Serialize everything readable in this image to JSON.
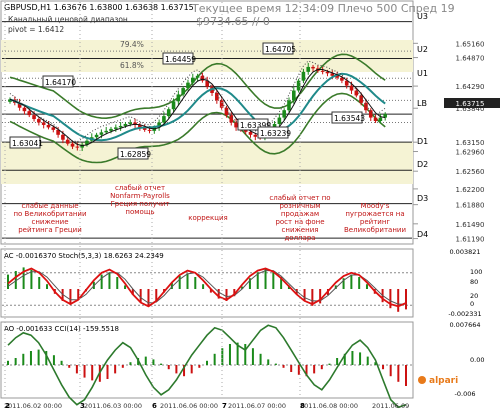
{
  "header": {
    "symbol_line": "GBPUSD,H1  1.63676 1.63800 1.63638 1.63715",
    "overlay_line1": "Текущее время 12:34:09 Плечо 500 Спред 19",
    "overlay_line2": "$9734.65  // 0",
    "channel_label": "Канальный ценовой диапазон",
    "pivot_label": "pivot = 1.6412"
  },
  "fib_labels": [
    "79.4%",
    "61.8%"
  ],
  "level_labels": [
    "U3",
    "U2",
    "U1",
    "LB",
    "D1",
    "D2",
    "D3",
    "D4"
  ],
  "price_labels": [
    "1.64705",
    "1.64459",
    "1.64170",
    "1.63041",
    "1.62859",
    "1.63399",
    "1.63239",
    "1.63543"
  ],
  "annotations": [
    {
      "lines": [
        "слабые данные",
        "по Великобритании",
        "снижение",
        "рейтинга Греции"
      ]
    },
    {
      "lines": [
        "слабый отчет",
        "Nonfarm-Payrolls",
        "Греция получит",
        "помощь"
      ]
    },
    {
      "lines": [
        "коррекция"
      ]
    },
    {
      "lines": [
        "слабый отчет по",
        "розничным",
        "продажам",
        "рост на фоне",
        "снижения",
        "доллара"
      ]
    },
    {
      "lines": [
        "Moody's",
        "пугрожается на",
        "рейтинг",
        "Великобритании"
      ]
    }
  ],
  "indicators": {
    "ac_label": "AC -0.0016370  Stoch(5,3,3) 18.6263 24.2349",
    "ao_label": "AO -0.001633  CCI(14) -159.5518",
    "ac_scale": [
      "0.003821",
      "100",
      "80",
      "20",
      "0",
      "-0.002331"
    ],
    "ao_scale": [
      "0.007664",
      "0.00",
      "-0.006"
    ]
  },
  "time_axis": [
    "2011.06.02 00:00",
    "2011.06.03 00:00",
    "2011.06.06 00:00",
    "2011.06.07 00:00",
    "2011.06.08 00:00",
    "2011.06.09"
  ],
  "time_marks": [
    "2",
    "3",
    "6",
    "7",
    "8"
  ],
  "brand": "alpari",
  "colors": {
    "bull": "#1a8a1a",
    "bear": "#cc1111",
    "ma_teal": "#1f8a8a",
    "band_green": "#3a7a2a",
    "zone_fill": "#f5f3d4",
    "stoch_red": "#dd1111",
    "cci_green": "#2d7a2d"
  },
  "chart_data": [
    {
      "type": "candlestick",
      "title": "GBPUSD,H1",
      "ylabel": "",
      "ylim": [
        1.611,
        1.66
      ],
      "y_ticks": [
        "1.65910",
        "1.65650",
        "1.65390",
        "1.65130",
        "1.64870",
        "1.64610",
        "1.64350",
        "1.64090",
        "1.63830",
        "1.63570",
        "1.63310",
        "1.63050",
        "1.62790",
        "1.62530",
        "1.62270",
        "1.62010",
        "1.61750",
        "1.61490",
        "1.61190"
      ],
      "visible_y_labels": [
        "1.65160",
        "1.64870",
        "1.64290",
        "1.63840",
        "1.63715",
        "1.63150",
        "1.62960",
        "1.62560",
        "1.62200",
        "1.61880",
        "1.61490",
        "1.61190"
      ],
      "close_series": [
        1.6402,
        1.6395,
        1.6385,
        1.6378,
        1.637,
        1.6362,
        1.6355,
        1.635,
        1.6345,
        1.634,
        1.633,
        1.632,
        1.6312,
        1.6306,
        1.6304,
        1.631,
        1.6318,
        1.6325,
        1.633,
        1.6335,
        1.6338,
        1.6342,
        1.6345,
        1.6348,
        1.6352,
        1.6355,
        1.635,
        1.6345,
        1.634,
        1.6338,
        1.6345,
        1.6355,
        1.6368,
        1.6382,
        1.6398,
        1.6412,
        1.6425,
        1.6436,
        1.6446,
        1.645,
        1.644,
        1.6428,
        1.6415,
        1.64,
        1.6385,
        1.637,
        1.6355,
        1.6345,
        1.634,
        1.6336,
        1.633,
        1.6326,
        1.6324,
        1.633,
        1.634,
        1.6352,
        1.6365,
        1.638,
        1.64,
        1.642,
        1.644,
        1.6458,
        1.6468,
        1.6465,
        1.646,
        1.6458,
        1.6455,
        1.645,
        1.6446,
        1.644,
        1.643,
        1.642,
        1.641,
        1.6395,
        1.638,
        1.6365,
        1.6358,
        1.6365,
        1.6372
      ],
      "levels": {
        "U3": 1.656,
        "U2": 1.6485,
        "U1": 1.6428,
        "LB": 1.6372,
        "D1": 1.6315,
        "D2": 1.6258,
        "D3": 1.619,
        "D4": 1.612
      }
    },
    {
      "type": "line",
      "title": "Stoch(5,3,3)",
      "ylim": [
        0,
        100
      ],
      "main": [
        60,
        72,
        82,
        88,
        80,
        65,
        45,
        30,
        22,
        30,
        48,
        66,
        80,
        86,
        78,
        60,
        40,
        25,
        18,
        28,
        45,
        62,
        76,
        84,
        80,
        66,
        50,
        36,
        30,
        40,
        58,
        74,
        84,
        88,
        82,
        70,
        55,
        40,
        28,
        22,
        30,
        46,
        62,
        74,
        80,
        76,
        62,
        46,
        32,
        22,
        18,
        24
      ],
      "signal": [
        55,
        65,
        75,
        82,
        82,
        72,
        56,
        40,
        30,
        30,
        40,
        56,
        70,
        80,
        80,
        68,
        50,
        34,
        24,
        26,
        38,
        54,
        68,
        78,
        80,
        72,
        58,
        44,
        36,
        38,
        50,
        66,
        78,
        84,
        84,
        74,
        60,
        46,
        34,
        28,
        28,
        38,
        52,
        66,
        76,
        76,
        66,
        52,
        38,
        28,
        22,
        22
      ],
      "histogram": [
        1.2,
        1.5,
        1.8,
        1.6,
        1.0,
        0.4,
        -0.4,
        -1.0,
        -1.3,
        -0.9,
        -0.2,
        0.6,
        1.2,
        1.4,
        1.0,
        0.3,
        -0.5,
        -1.1,
        -1.4,
        -1.0,
        -0.3,
        0.5,
        1.1,
        1.3,
        1.0,
        0.4,
        -0.3,
        -0.8,
        -1.0,
        -0.6,
        0.2,
        0.9,
        1.4,
        1.7,
        1.5,
        1.0,
        0.3,
        -0.4,
        -1.0,
        -1.4,
        -1.2,
        -0.5,
        0.3,
        0.9,
        1.2,
        1.0,
        0.4,
        -0.4,
        -1.1,
        -1.6,
        -1.9,
        -1.7
      ]
    },
    {
      "type": "line",
      "title": "CCI(14)",
      "cci": [
        80,
        110,
        130,
        120,
        90,
        40,
        -20,
        -80,
        -130,
        -160,
        -140,
        -90,
        -30,
        20,
        60,
        90,
        70,
        20,
        -40,
        -90,
        -120,
        -100,
        -60,
        -10,
        40,
        80,
        120,
        150,
        140,
        110,
        80,
        60,
        100,
        140,
        160,
        150,
        110,
        60,
        10,
        -40,
        -80,
        -100,
        -60,
        -10,
        40,
        80,
        100,
        70,
        20,
        -60,
        -140,
        -170,
        -160
      ],
      "histogram": [
        0.3,
        0.5,
        0.8,
        1.0,
        1.1,
        1.0,
        0.7,
        0.3,
        -0.2,
        -0.6,
        -0.9,
        -1.1,
        -1.2,
        -1.0,
        -0.6,
        -0.2,
        0.2,
        0.5,
        0.6,
        0.4,
        0.1,
        -0.3,
        -0.6,
        -0.8,
        -0.6,
        -0.2,
        0.3,
        0.8,
        1.2,
        1.5,
        1.6,
        1.5,
        1.2,
        0.8,
        0.4,
        0.1,
        -0.2,
        -0.5,
        -0.7,
        -0.8,
        -0.6,
        -0.3,
        0.1,
        0.5,
        0.8,
        1.0,
        0.9,
        0.6,
        0.2,
        -0.3,
        -0.8,
        -1.2,
        -1.5
      ]
    }
  ]
}
